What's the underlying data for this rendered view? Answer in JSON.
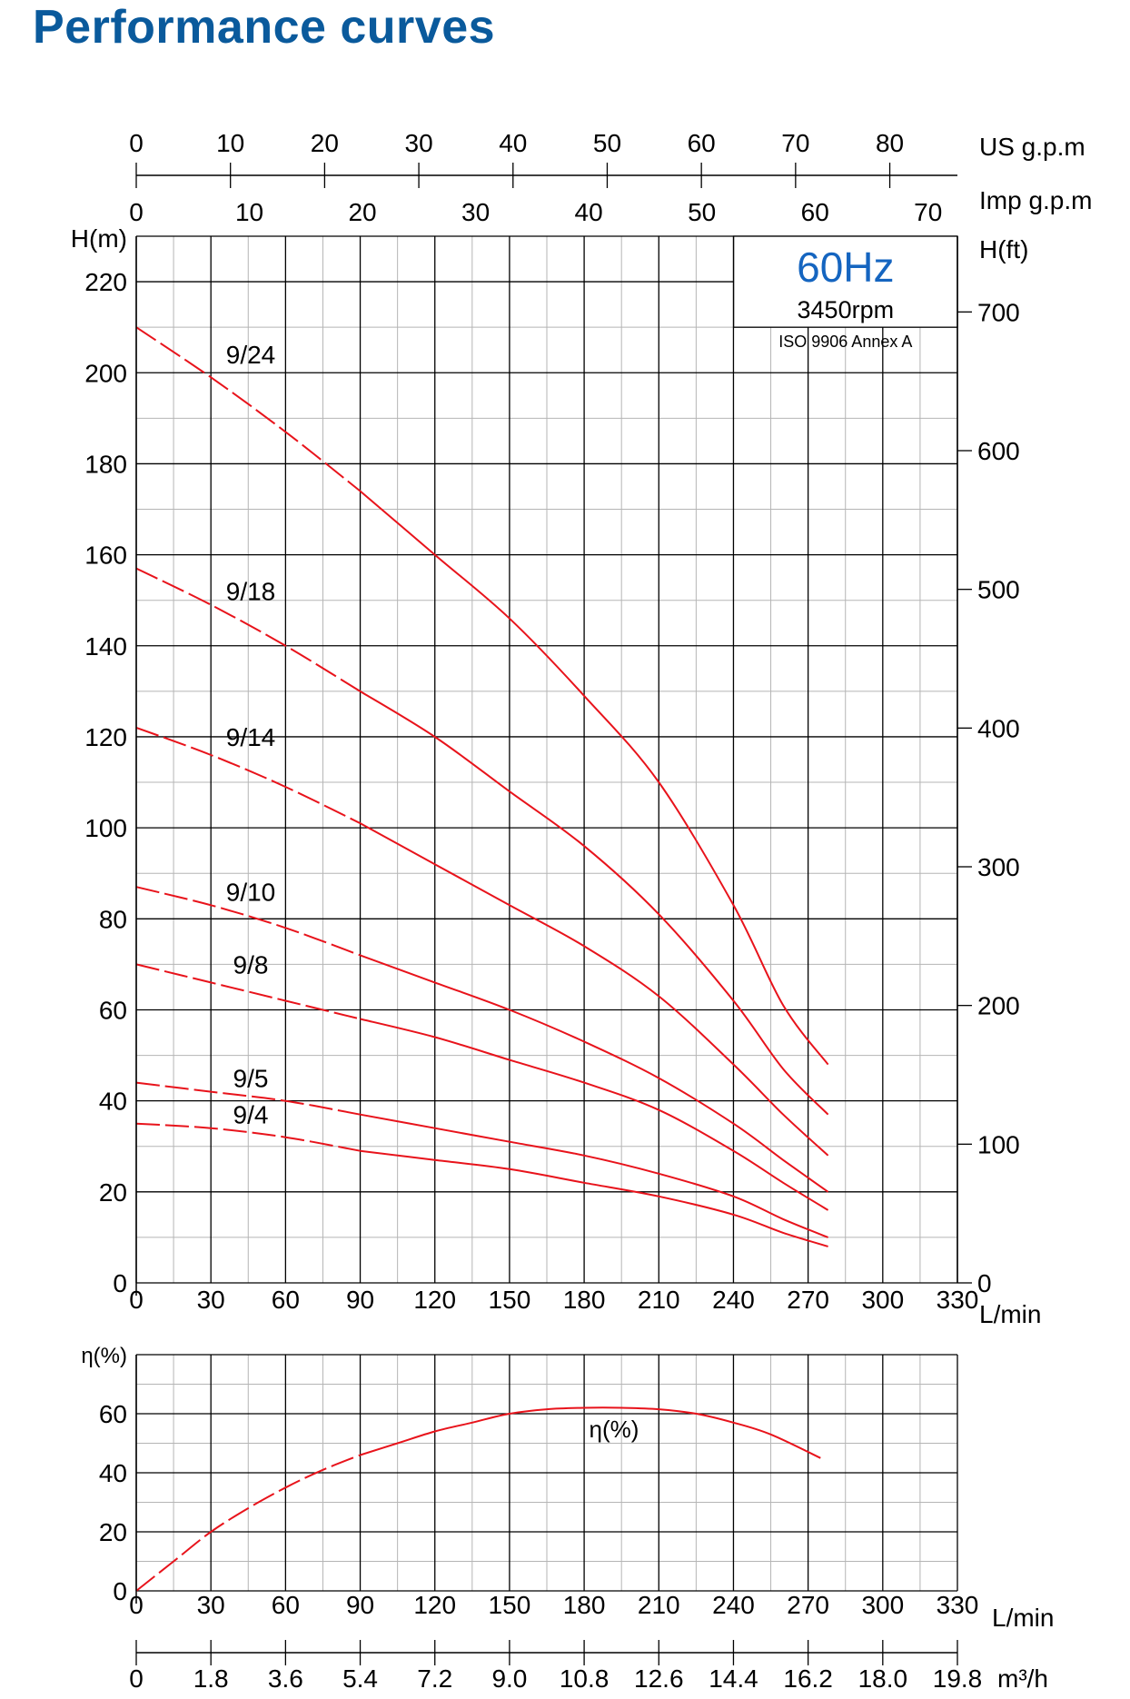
{
  "title": "Performance curves",
  "colors": {
    "curve": "#e8131b",
    "title": "#0a5a9c",
    "hz": "#1565c0",
    "grid_major": "#000000",
    "grid_minor": "#b5b5b5"
  },
  "info_box": {
    "frequency": "60Hz",
    "speed": "3450rpm",
    "standard": "ISO 9906 Annex A"
  },
  "chart_data": [
    {
      "type": "line",
      "xlabel": "L/min",
      "ylabel": "H(m)",
      "ylabel_right": "H(ft)",
      "xlim": [
        0,
        330
      ],
      "ylim": [
        0,
        230
      ],
      "x_ticks": [
        0,
        30,
        60,
        90,
        120,
        150,
        180,
        210,
        240,
        270,
        300,
        330
      ],
      "y_ticks": [
        0,
        20,
        40,
        60,
        80,
        100,
        120,
        140,
        160,
        180,
        200,
        220
      ],
      "y_right_ticks": [
        0,
        100,
        200,
        300,
        400,
        500,
        600,
        700
      ],
      "us_gpm_label": "US g.p.m",
      "us_gpm_ticks": [
        0,
        10,
        20,
        30,
        40,
        50,
        60,
        70,
        80
      ],
      "imp_gpm_label": "Imp g.p.m",
      "imp_gpm_ticks": [
        0,
        10,
        20,
        30,
        40,
        50,
        60,
        70
      ],
      "grid": true,
      "series": [
        {
          "name": "9/24",
          "x": [
            0,
            30,
            60,
            90,
            120,
            150,
            180,
            210,
            240,
            260,
            278
          ],
          "y": [
            210,
            199,
            187,
            174,
            160,
            146,
            129,
            110,
            83,
            61,
            48
          ],
          "dashed_until": 90,
          "label_at": [
            46,
            202
          ]
        },
        {
          "name": "9/18",
          "x": [
            0,
            30,
            60,
            90,
            120,
            150,
            180,
            210,
            240,
            260,
            278
          ],
          "y": [
            157,
            149,
            140,
            130,
            120,
            108,
            96,
            81,
            62,
            47,
            37
          ],
          "dashed_until": 90,
          "label_at": [
            46,
            150
          ]
        },
        {
          "name": "9/14",
          "x": [
            0,
            30,
            60,
            90,
            120,
            150,
            180,
            210,
            240,
            260,
            278
          ],
          "y": [
            122,
            116,
            109,
            101,
            92,
            83,
            74,
            63,
            48,
            37,
            28
          ],
          "dashed_until": 90,
          "label_at": [
            46,
            118
          ]
        },
        {
          "name": "9/10",
          "x": [
            0,
            30,
            60,
            90,
            120,
            150,
            180,
            210,
            240,
            260,
            278
          ],
          "y": [
            87,
            83,
            78,
            72,
            66,
            60,
            53,
            45,
            35,
            27,
            20
          ],
          "dashed_until": 90,
          "label_at": [
            46,
            84
          ]
        },
        {
          "name": "9/8",
          "x": [
            0,
            30,
            60,
            90,
            120,
            150,
            180,
            210,
            240,
            260,
            278
          ],
          "y": [
            70,
            66,
            62,
            58,
            54,
            49,
            44,
            38,
            29,
            22,
            16
          ],
          "dashed_until": 90,
          "label_at": [
            46,
            68
          ]
        },
        {
          "name": "9/5",
          "x": [
            0,
            30,
            60,
            90,
            120,
            150,
            180,
            210,
            240,
            260,
            278
          ],
          "y": [
            44,
            42,
            40,
            37,
            34,
            31,
            28,
            24,
            19,
            14,
            10
          ],
          "dashed_until": 90,
          "label_at": [
            46,
            43
          ]
        },
        {
          "name": "9/4",
          "x": [
            0,
            30,
            60,
            90,
            120,
            150,
            180,
            210,
            240,
            260,
            278
          ],
          "y": [
            35,
            34,
            32,
            29,
            27,
            25,
            22,
            19,
            15,
            11,
            8
          ],
          "dashed_until": 90,
          "label_at": [
            46,
            35
          ]
        }
      ]
    },
    {
      "type": "line",
      "xlabel": "L/min",
      "ylabel": "η(%)",
      "xlim": [
        0,
        330
      ],
      "ylim": [
        0,
        80
      ],
      "x_ticks": [
        0,
        30,
        60,
        90,
        120,
        150,
        180,
        210,
        240,
        270,
        300,
        330
      ],
      "y_ticks": [
        0,
        20,
        40,
        60
      ],
      "m3h_label": "m³/h",
      "m3h_ticks": [
        "0",
        "1.8",
        "3.6",
        "5.4",
        "7.2",
        "9.0",
        "10.8",
        "12.6",
        "14.4",
        "16.2",
        "18.0",
        "19.8"
      ],
      "grid": true,
      "series": [
        {
          "name": "η(%)",
          "x": [
            0,
            15,
            30,
            45,
            60,
            75,
            90,
            105,
            120,
            135,
            150,
            165,
            180,
            195,
            210,
            225,
            240,
            255,
            275
          ],
          "y": [
            0,
            10,
            20,
            28,
            35,
            41,
            46,
            50,
            54,
            57,
            60,
            61.5,
            62,
            62,
            61.5,
            60,
            57,
            53,
            45
          ],
          "dashed_until": 90,
          "label_at": [
            192,
            52
          ]
        }
      ]
    }
  ]
}
